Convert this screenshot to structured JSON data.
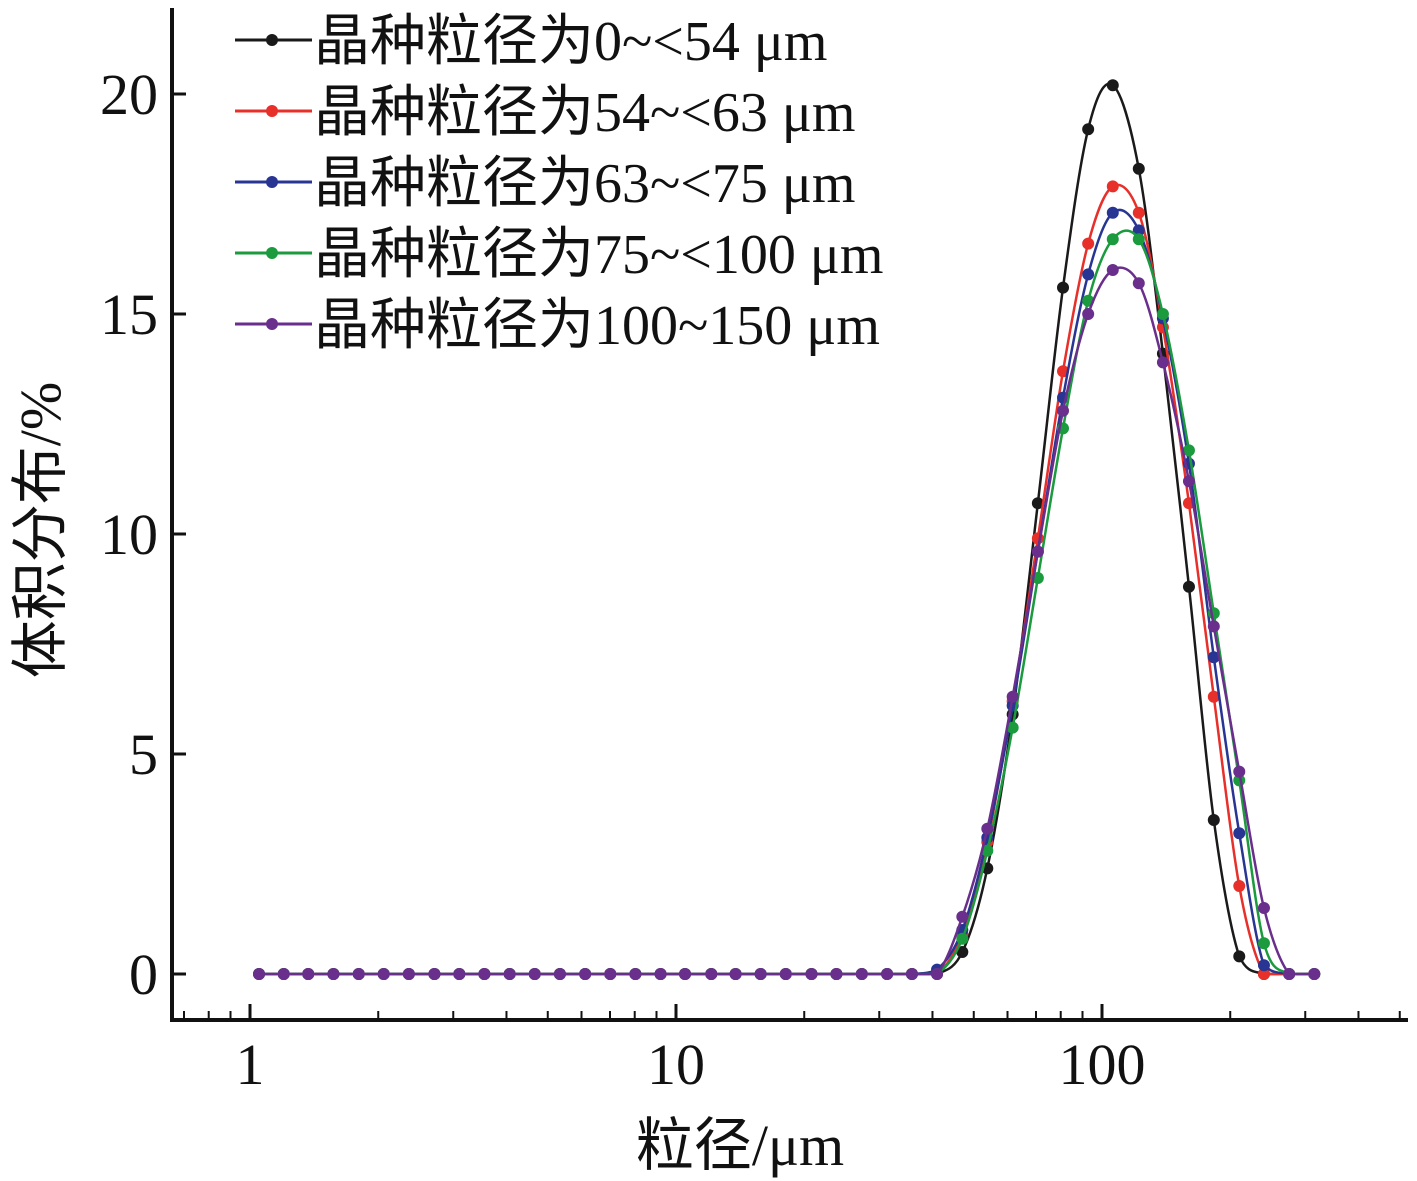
{
  "chart_data": {
    "type": "line",
    "xlabel": "粒径/μm",
    "ylabel": "体积分布/%",
    "xscale": "log",
    "xlim": [
      0.8,
      500
    ],
    "ylim": [
      -1,
      22
    ],
    "xticks": [
      "1",
      "10",
      "100"
    ],
    "yticks": [
      "0",
      "5",
      "10",
      "15",
      "20"
    ],
    "grid": false,
    "legend_position": "top-left",
    "x": [
      1.05,
      1.2,
      1.37,
      1.57,
      1.8,
      2.06,
      2.36,
      2.71,
      3.1,
      3.55,
      4.07,
      4.66,
      5.34,
      6.12,
      7.01,
      8.03,
      9.2,
      10.5,
      12.1,
      13.8,
      15.8,
      18.1,
      20.8,
      23.8,
      27.3,
      31.3,
      35.8,
      41.0,
      47.0,
      53.8,
      61.7,
      70.7,
      81.0,
      92.8,
      106,
      122,
      139,
      160,
      183,
      210,
      240,
      275,
      315
    ],
    "series": [
      {
        "name": "晶种粒径为0~<54 μm",
        "color": "#1a1a1a",
        "values": [
          0,
          0,
          0,
          0,
          0,
          0,
          0,
          0,
          0,
          0,
          0,
          0,
          0,
          0,
          0,
          0,
          0,
          0,
          0,
          0,
          0,
          0,
          0,
          0,
          0,
          0,
          0,
          0,
          0.5,
          2.4,
          5.9,
          10.7,
          15.6,
          19.2,
          20.2,
          18.3,
          14.1,
          8.8,
          3.5,
          0.4,
          0,
          0,
          0
        ]
      },
      {
        "name": "晶种粒径为54~<63 μm",
        "color": "#e8302a",
        "values": [
          0,
          0,
          0,
          0,
          0,
          0,
          0,
          0,
          0,
          0,
          0,
          0,
          0,
          0,
          0,
          0,
          0,
          0,
          0,
          0,
          0,
          0,
          0,
          0,
          0,
          0,
          0,
          0,
          0.9,
          3.0,
          6.2,
          9.9,
          13.7,
          16.6,
          17.9,
          17.3,
          14.7,
          10.7,
          6.3,
          2.0,
          0,
          0,
          0
        ]
      },
      {
        "name": "晶种粒径为63~<75 μm",
        "color": "#283593",
        "values": [
          0,
          0,
          0,
          0,
          0,
          0,
          0,
          0,
          0,
          0,
          0,
          0,
          0,
          0,
          0,
          0,
          0,
          0,
          0,
          0,
          0,
          0,
          0,
          0,
          0,
          0,
          0,
          0.1,
          1.0,
          3.1,
          6.1,
          9.6,
          13.1,
          15.9,
          17.3,
          16.9,
          14.9,
          11.6,
          7.2,
          3.2,
          0.2,
          0,
          0
        ]
      },
      {
        "name": "晶种粒径为75~<100 μm",
        "color": "#1b9a3e",
        "values": [
          0,
          0,
          0,
          0,
          0,
          0,
          0,
          0,
          0,
          0,
          0,
          0,
          0,
          0,
          0,
          0,
          0,
          0,
          0,
          0,
          0,
          0,
          0,
          0,
          0,
          0,
          0,
          0,
          0.8,
          2.8,
          5.6,
          9.0,
          12.4,
          15.3,
          16.7,
          16.7,
          15.0,
          11.9,
          8.2,
          4.4,
          0.7,
          0,
          0
        ]
      },
      {
        "name": "晶种粒径为100~150 μm",
        "color": "#6a2e8c",
        "values": [
          0,
          0,
          0,
          0,
          0,
          0,
          0,
          0,
          0,
          0,
          0,
          0,
          0,
          0,
          0,
          0,
          0,
          0,
          0,
          0,
          0,
          0,
          0,
          0,
          0,
          0,
          0,
          0,
          1.3,
          3.3,
          6.3,
          9.6,
          12.8,
          15.0,
          16.0,
          15.7,
          13.9,
          11.2,
          7.9,
          4.6,
          1.5,
          0,
          0
        ]
      }
    ]
  }
}
